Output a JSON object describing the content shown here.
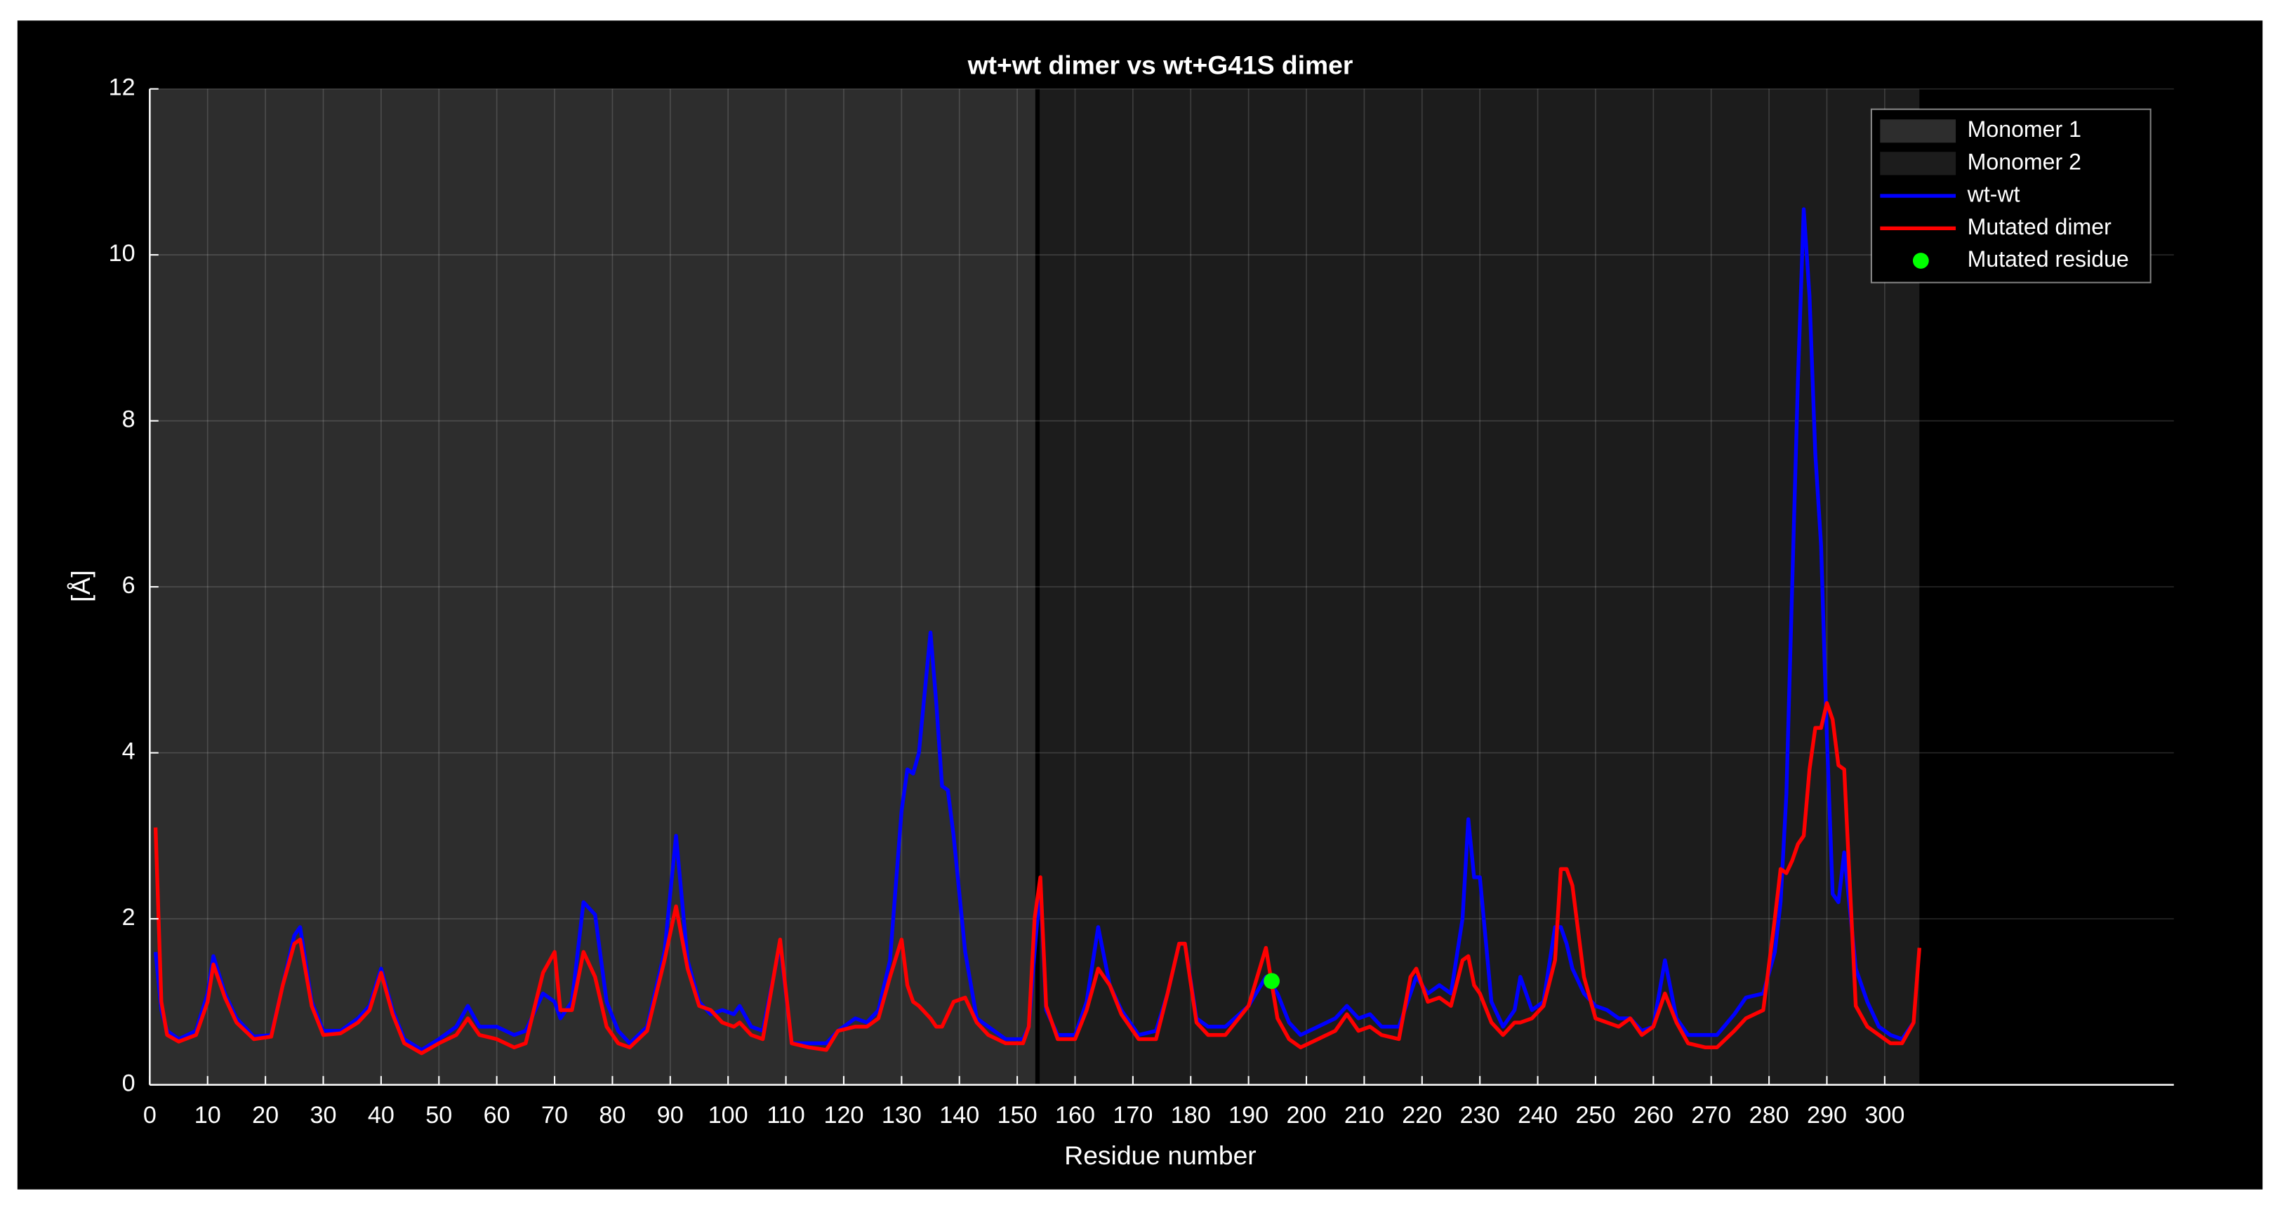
{
  "chart_data": {
    "type": "line",
    "title": "wt+wt dimer vs wt+G41S dimer",
    "x_label": "Residue number",
    "y_label": "[Å]",
    "xlim": [
      0,
      350
    ],
    "ylim": [
      0,
      12
    ],
    "xticks": [
      0,
      10,
      20,
      30,
      40,
      50,
      60,
      70,
      80,
      90,
      100,
      110,
      120,
      130,
      140,
      150,
      160,
      170,
      180,
      190,
      200,
      210,
      220,
      230,
      240,
      250,
      260,
      270,
      280,
      290,
      300
    ],
    "yticks": [
      0,
      2,
      4,
      6,
      8,
      10,
      12
    ],
    "grid": true,
    "legend": "upper right",
    "regions": [
      {
        "name": "Monomer 1",
        "start": 0,
        "end": 153.5,
        "color": "#2d2d2d"
      },
      {
        "name": "Monomer 2",
        "start": 153.5,
        "end": 306,
        "color": "#1c1c1c"
      }
    ],
    "x": [
      1,
      2,
      3,
      5,
      8,
      10,
      11,
      13,
      15,
      18,
      21,
      23,
      25,
      26,
      28,
      30,
      33,
      36,
      38,
      40,
      42,
      44,
      47,
      50,
      53,
      55,
      57,
      60,
      63,
      65,
      68,
      70,
      71,
      73,
      75,
      77,
      79,
      81,
      83,
      86,
      89,
      91,
      93,
      95,
      97,
      99,
      101,
      102,
      104,
      106,
      109,
      111,
      114,
      117,
      119,
      122,
      124,
      126,
      128,
      130,
      131,
      132,
      133,
      135,
      136,
      137,
      138,
      139,
      141,
      143,
      145,
      148,
      151,
      152,
      153,
      154,
      155,
      157,
      160,
      162,
      164,
      166,
      168,
      171,
      174,
      176,
      178,
      179,
      181,
      183,
      186,
      190,
      193,
      195,
      197,
      199,
      202,
      205,
      207,
      209,
      211,
      213,
      216,
      218,
      219,
      221,
      223,
      225,
      227,
      228,
      229,
      230,
      232,
      234,
      236,
      237,
      239,
      241,
      243,
      244,
      245,
      246,
      248,
      250,
      252,
      254,
      256,
      258,
      260,
      262,
      264,
      266,
      269,
      271,
      274,
      276,
      279,
      281,
      282,
      283,
      284,
      285,
      286,
      287,
      288,
      289,
      290,
      291,
      292,
      293,
      295,
      297,
      299,
      301,
      303,
      305,
      306
    ],
    "series": [
      {
        "name": "wt-wt",
        "color": "#0000ff",
        "values": [
          1.6,
          0.9,
          0.65,
          0.55,
          0.65,
          1.1,
          1.55,
          1.1,
          0.8,
          0.58,
          0.6,
          1.2,
          1.8,
          1.9,
          1.0,
          0.65,
          0.65,
          0.8,
          0.95,
          1.4,
          0.9,
          0.55,
          0.42,
          0.55,
          0.7,
          0.95,
          0.7,
          0.7,
          0.6,
          0.65,
          1.1,
          1.0,
          0.8,
          1.0,
          2.2,
          2.05,
          1.0,
          0.65,
          0.5,
          0.7,
          1.6,
          3.0,
          1.5,
          1.0,
          0.85,
          0.9,
          0.85,
          0.95,
          0.7,
          0.65,
          1.7,
          0.5,
          0.5,
          0.5,
          0.65,
          0.8,
          0.75,
          0.9,
          1.5,
          3.3,
          3.8,
          3.75,
          4.0,
          5.45,
          4.6,
          3.6,
          3.55,
          3.0,
          1.6,
          0.8,
          0.7,
          0.55,
          0.55,
          0.7,
          1.6,
          2.4,
          0.9,
          0.6,
          0.6,
          1.0,
          1.9,
          1.2,
          0.9,
          0.6,
          0.65,
          1.1,
          1.7,
          1.7,
          0.8,
          0.7,
          0.7,
          0.95,
          1.3,
          1.1,
          0.75,
          0.6,
          0.7,
          0.8,
          0.95,
          0.8,
          0.85,
          0.7,
          0.7,
          1.1,
          1.3,
          1.1,
          1.2,
          1.1,
          2.0,
          3.2,
          2.5,
          2.5,
          1.0,
          0.7,
          0.9,
          1.3,
          0.9,
          1.0,
          1.9,
          1.9,
          1.7,
          1.4,
          1.1,
          0.95,
          0.9,
          0.8,
          0.8,
          0.65,
          0.7,
          1.5,
          0.8,
          0.6,
          0.6,
          0.6,
          0.85,
          1.05,
          1.1,
          1.6,
          2.2,
          3.5,
          6.0,
          8.5,
          10.55,
          9.5,
          7.6,
          6.5,
          4.2,
          2.3,
          2.2,
          2.8,
          1.4,
          1.0,
          0.7,
          0.6,
          0.55,
          0.75,
          null
        ]
      },
      {
        "name": "Mutated dimer",
        "color": "#ff0000",
        "values": [
          3.1,
          1.0,
          0.6,
          0.52,
          0.6,
          1.0,
          1.45,
          1.05,
          0.75,
          0.55,
          0.58,
          1.2,
          1.7,
          1.75,
          0.95,
          0.6,
          0.62,
          0.75,
          0.9,
          1.35,
          0.85,
          0.5,
          0.38,
          0.5,
          0.6,
          0.8,
          0.6,
          0.55,
          0.45,
          0.5,
          1.35,
          1.6,
          0.9,
          0.9,
          1.6,
          1.3,
          0.7,
          0.5,
          0.45,
          0.65,
          1.5,
          2.15,
          1.4,
          0.95,
          0.9,
          0.75,
          0.7,
          0.75,
          0.6,
          0.55,
          1.75,
          0.5,
          0.45,
          0.42,
          0.65,
          0.7,
          0.7,
          0.8,
          1.3,
          1.75,
          1.2,
          1.0,
          0.95,
          0.8,
          0.7,
          0.7,
          0.85,
          1.0,
          1.05,
          0.75,
          0.6,
          0.5,
          0.5,
          0.7,
          2.0,
          2.5,
          0.95,
          0.55,
          0.55,
          0.9,
          1.4,
          1.2,
          0.85,
          0.55,
          0.55,
          1.1,
          1.7,
          1.7,
          0.75,
          0.6,
          0.6,
          0.95,
          1.65,
          0.8,
          0.55,
          0.45,
          0.55,
          0.65,
          0.85,
          0.65,
          0.7,
          0.6,
          0.55,
          1.3,
          1.4,
          1.0,
          1.05,
          0.95,
          1.5,
          1.55,
          1.2,
          1.1,
          0.75,
          0.6,
          0.75,
          0.75,
          0.8,
          0.95,
          1.5,
          2.6,
          2.6,
          2.4,
          1.3,
          0.8,
          0.75,
          0.7,
          0.8,
          0.6,
          0.7,
          1.1,
          0.75,
          0.5,
          0.45,
          0.45,
          0.65,
          0.8,
          0.9,
          2.0,
          2.6,
          2.55,
          2.7,
          2.9,
          3.0,
          3.8,
          4.3,
          4.3,
          4.6,
          4.4,
          3.85,
          3.8,
          0.95,
          0.7,
          0.6,
          0.5,
          0.5,
          0.75,
          1.65
        ]
      }
    ],
    "marker": {
      "name": "Mutated residue",
      "color": "#00ff00",
      "x": 194,
      "y": 1.25
    }
  }
}
